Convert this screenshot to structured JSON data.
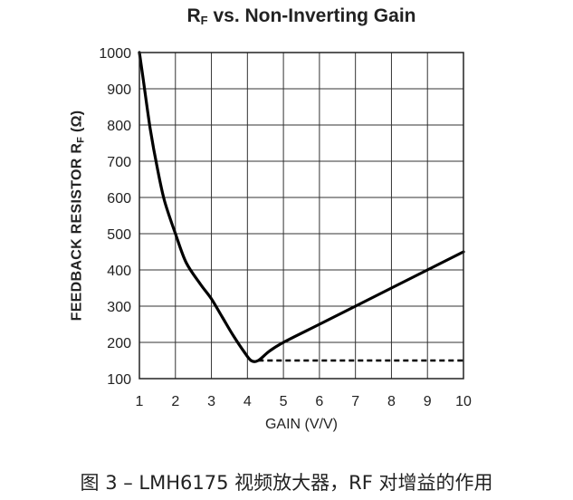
{
  "chart_data": {
    "type": "line",
    "title": {
      "main": "R",
      "sub": "F",
      "rest": " vs. Non-Inverting Gain"
    },
    "xlabel": "GAIN (V/V)",
    "ylabel": {
      "main": "FEEDBACK RESISTOR R",
      "sub": "F",
      "rest": " (Ω)"
    },
    "xlim": [
      1,
      10
    ],
    "ylim": [
      100,
      1000
    ],
    "x_ticks": [
      1,
      2,
      3,
      4,
      5,
      6,
      7,
      8,
      9,
      10
    ],
    "y_ticks": [
      100,
      200,
      300,
      400,
      500,
      600,
      700,
      800,
      900,
      1000
    ],
    "grid": true,
    "series": [
      {
        "style": "solid",
        "x": [
          1.0,
          1.1,
          1.3,
          1.5,
          1.7,
          2.0,
          2.3,
          2.7,
          3.0,
          3.3,
          3.6,
          3.9,
          4.1,
          4.3,
          4.6,
          5.0,
          6.0,
          7.0,
          8.0,
          9.0,
          10.0
        ],
        "y": [
          1000,
          930,
          790,
          680,
          590,
          500,
          420,
          360,
          320,
          270,
          220,
          175,
          150,
          150,
          175,
          200,
          250,
          300,
          350,
          400,
          450
        ]
      },
      {
        "style": "dashed",
        "x": [
          4.3,
          10.0
        ],
        "y": [
          150,
          150
        ]
      }
    ]
  },
  "caption": "图 3 – LMH6175 视频放大器，RF 对增益的作用"
}
